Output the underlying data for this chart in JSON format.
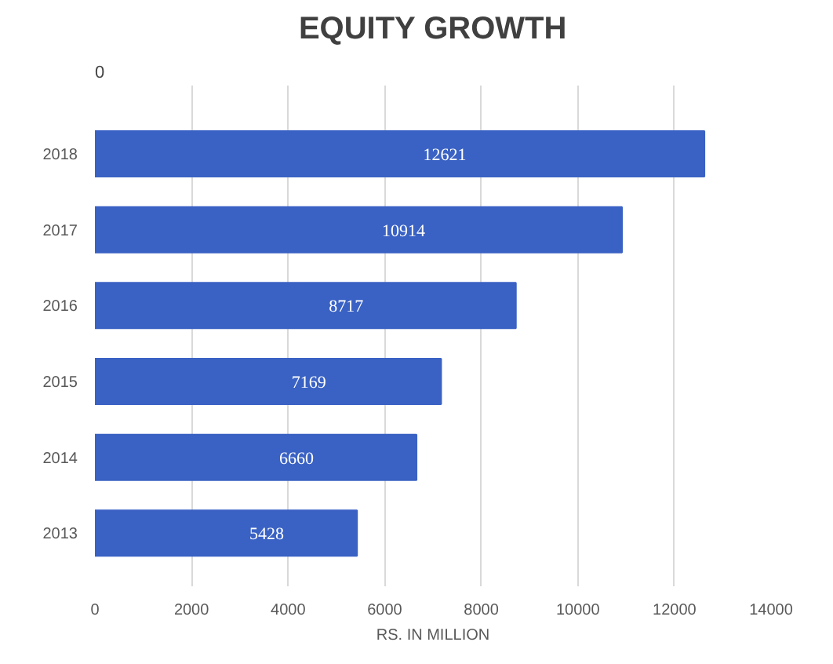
{
  "chart_data": {
    "type": "bar",
    "orientation": "horizontal",
    "title": "EQUITY GROWTH",
    "xlabel": "RS. IN MILLION",
    "annotations": [
      "0"
    ],
    "categories": [
      "2018",
      "2017",
      "2016",
      "2015",
      "2014",
      "2013"
    ],
    "values": [
      12621,
      10914,
      8717,
      7169,
      6660,
      5428
    ],
    "color": "#3a62c4",
    "xlim": [
      0,
      14000
    ],
    "xticks": [
      0,
      2000,
      4000,
      6000,
      8000,
      10000,
      12000,
      14000
    ],
    "grid": "x",
    "data_labels": true
  }
}
